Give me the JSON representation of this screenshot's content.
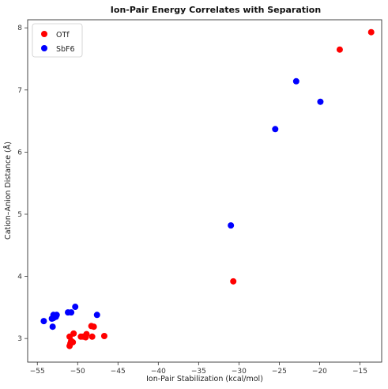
{
  "chart_data": {
    "type": "scatter",
    "title": "Ion-Pair Energy Correlates with Separation",
    "xlabel": "Ion-Pair Stabilization (kcal/mol)",
    "ylabel": "Cation–Anion Distance (Å)",
    "xlim": [
      -56.2,
      -12.3
    ],
    "ylim": [
      2.62,
      8.13
    ],
    "xticks": [
      -55,
      -50,
      -45,
      -40,
      -35,
      -30,
      -25,
      -20,
      -15
    ],
    "yticks": [
      3,
      4,
      5,
      6,
      7,
      8
    ],
    "grid": false,
    "legend_position": "top-left",
    "series": [
      {
        "name": "OTf",
        "color": "#ff0000",
        "points": [
          [
            -13.6,
            7.93
          ],
          [
            -17.5,
            7.65
          ],
          [
            -30.7,
            3.92
          ],
          [
            -46.7,
            3.04
          ],
          [
            -48.0,
            3.19
          ],
          [
            -48.3,
            3.2
          ],
          [
            -48.2,
            3.03
          ],
          [
            -48.9,
            3.07
          ],
          [
            -49.0,
            3.02
          ],
          [
            -49.3,
            3.03
          ],
          [
            -49.6,
            3.03
          ],
          [
            -50.5,
            3.08
          ],
          [
            -50.6,
            2.94
          ],
          [
            -50.8,
            2.96
          ],
          [
            -50.9,
            2.92
          ],
          [
            -51.0,
            2.88
          ],
          [
            -51.0,
            3.03
          ]
        ]
      },
      {
        "name": "SbF6",
        "color": "#0000ff",
        "points": [
          [
            -22.9,
            7.14
          ],
          [
            -19.9,
            6.81
          ],
          [
            -25.5,
            6.37
          ],
          [
            -31.0,
            4.82
          ],
          [
            -50.3,
            3.51
          ],
          [
            -50.8,
            3.42
          ],
          [
            -51.2,
            3.42
          ],
          [
            -47.6,
            3.38
          ],
          [
            -52.6,
            3.38
          ],
          [
            -53.0,
            3.38
          ],
          [
            -52.7,
            3.35
          ],
          [
            -53.0,
            3.33
          ],
          [
            -53.2,
            3.32
          ],
          [
            -54.2,
            3.28
          ],
          [
            -53.1,
            3.19
          ]
        ]
      }
    ]
  }
}
